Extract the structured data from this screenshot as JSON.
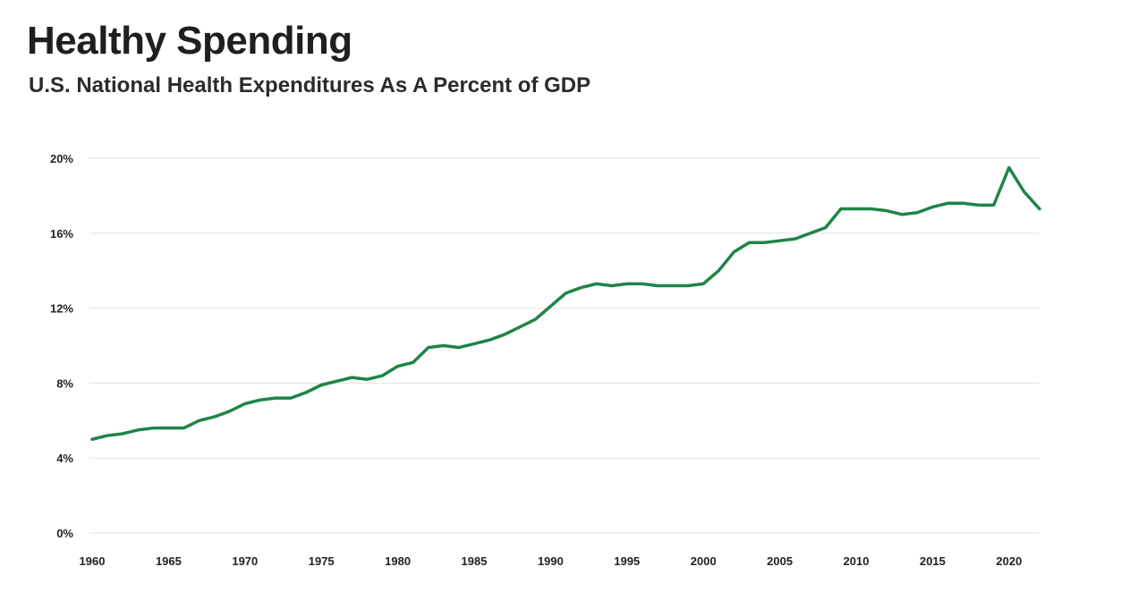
{
  "chart_data": {
    "type": "line",
    "title": "Healthy Spending",
    "subtitle": "U.S. National Health Expenditures As A Percent of GDP",
    "xlabel": "",
    "ylabel": "",
    "xlim": [
      1960,
      2022
    ],
    "ylim": [
      0,
      20
    ],
    "grid": true,
    "color": "#1e8449",
    "x_ticks": [
      1960,
      1965,
      1970,
      1975,
      1980,
      1985,
      1990,
      1995,
      2000,
      2005,
      2010,
      2015,
      2020
    ],
    "x_tick_labels": [
      "1960",
      "1965",
      "1970",
      "1975",
      "1980",
      "1985",
      "1990",
      "1995",
      "2000",
      "2005",
      "2010",
      "2015",
      "2020"
    ],
    "y_ticks": [
      0,
      4,
      8,
      12,
      16,
      20
    ],
    "y_tick_labels": [
      "0%",
      "4%",
      "8%",
      "12%",
      "16%",
      "20%"
    ],
    "series": [
      {
        "name": "National Health Expenditures (% of GDP)",
        "x": [
          1960,
          1961,
          1962,
          1963,
          1964,
          1965,
          1966,
          1967,
          1968,
          1969,
          1970,
          1971,
          1972,
          1973,
          1974,
          1975,
          1976,
          1977,
          1978,
          1979,
          1980,
          1981,
          1982,
          1983,
          1984,
          1985,
          1986,
          1987,
          1988,
          1989,
          1990,
          1991,
          1992,
          1993,
          1994,
          1995,
          1996,
          1997,
          1998,
          1999,
          2000,
          2001,
          2002,
          2003,
          2004,
          2005,
          2006,
          2007,
          2008,
          2009,
          2010,
          2011,
          2012,
          2013,
          2014,
          2015,
          2016,
          2017,
          2018,
          2019,
          2020,
          2021,
          2022
        ],
        "values": [
          5.0,
          5.2,
          5.3,
          5.5,
          5.6,
          5.6,
          5.6,
          6.0,
          6.2,
          6.5,
          6.9,
          7.1,
          7.2,
          7.2,
          7.5,
          7.9,
          8.1,
          8.3,
          8.2,
          8.4,
          8.9,
          9.1,
          9.9,
          10.0,
          9.9,
          10.1,
          10.3,
          10.6,
          11.0,
          11.4,
          12.1,
          12.8,
          13.1,
          13.3,
          13.2,
          13.3,
          13.3,
          13.2,
          13.2,
          13.2,
          13.3,
          14.0,
          15.0,
          15.5,
          15.5,
          15.6,
          15.7,
          16.0,
          16.3,
          17.3,
          17.3,
          17.3,
          17.2,
          17.0,
          17.1,
          17.4,
          17.6,
          17.6,
          17.5,
          17.5,
          19.5,
          18.2,
          17.3
        ]
      }
    ]
  }
}
